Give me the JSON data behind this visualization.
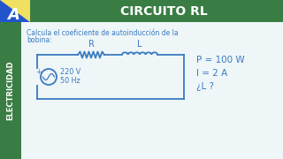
{
  "title": "CIRCUITO RL",
  "title_bg": "#3a7d44",
  "title_color": "#ffffff",
  "left_bar_color": "#3a7d44",
  "left_text": "ELECTRICIDAD",
  "left_text_color": "#ffffff",
  "logo_yellow": "#f0e060",
  "logo_blue": "#2255cc",
  "problem_text_line1": "Calcula el coeficiente de autoinducción de la",
  "problem_text_line2": "bobina:",
  "text_color": "#3a7abf",
  "circuit_color": "#3a7abf",
  "voltage": "220 V",
  "frequency": "50 Hz",
  "label_R": "R",
  "label_L": "L",
  "param1": "P = 100 W",
  "param2": "I = 2 A",
  "param3": "¿L ?",
  "main_bg": "#eef6f8"
}
